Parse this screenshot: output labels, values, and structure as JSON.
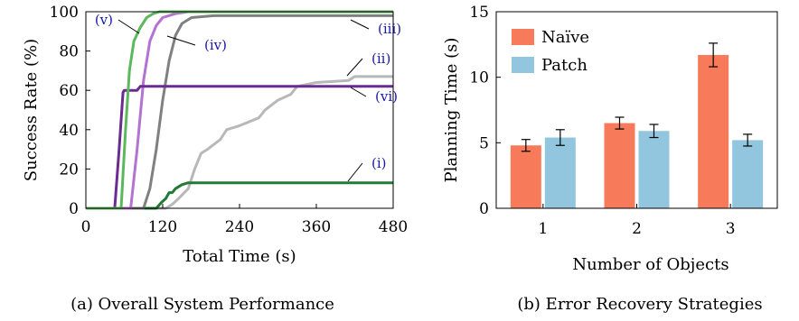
{
  "chart_data": [
    {
      "type": "line",
      "caption": "(a) Overall System Performance",
      "xlabel": "Total Time (s)",
      "ylabel": "Success Rate (%)",
      "xlim": [
        0,
        480
      ],
      "ylim": [
        0,
        100
      ],
      "xticks": [
        "0",
        "120",
        "240",
        "360",
        "480"
      ],
      "yticks": [
        "0",
        "20",
        "40",
        "60",
        "80",
        "100"
      ],
      "grid": false,
      "series": [
        {
          "name": "(i)",
          "color": "#237a35",
          "points": [
            [
              0,
              0
            ],
            [
              110,
              0
            ],
            [
              118,
              3
            ],
            [
              125,
              5
            ],
            [
              130,
              8
            ],
            [
              135,
              8
            ],
            [
              140,
              10
            ],
            [
              150,
              12
            ],
            [
              160,
              13
            ],
            [
              480,
              13
            ]
          ]
        },
        {
          "name": "(ii)",
          "color": "#b8b8b8",
          "points": [
            [
              0,
              0
            ],
            [
              125,
              0
            ],
            [
              135,
              2
            ],
            [
              145,
              5
            ],
            [
              160,
              10
            ],
            [
              170,
              20
            ],
            [
              180,
              28
            ],
            [
              190,
              30
            ],
            [
              210,
              35
            ],
            [
              220,
              40
            ],
            [
              240,
              42
            ],
            [
              270,
              46
            ],
            [
              280,
              50
            ],
            [
              300,
              55
            ],
            [
              320,
              58
            ],
            [
              330,
              62
            ],
            [
              360,
              64
            ],
            [
              410,
              65
            ],
            [
              420,
              67
            ],
            [
              480,
              67
            ]
          ]
        },
        {
          "name": "(iii)",
          "color": "#808080",
          "points": [
            [
              0,
              0
            ],
            [
              90,
              0
            ],
            [
              100,
              10
            ],
            [
              110,
              30
            ],
            [
              120,
              55
            ],
            [
              130,
              75
            ],
            [
              140,
              88
            ],
            [
              150,
              94
            ],
            [
              165,
              97
            ],
            [
              200,
              98
            ],
            [
              480,
              98
            ]
          ]
        },
        {
          "name": "(iv)",
          "color": "#b472d2",
          "points": [
            [
              0,
              0
            ],
            [
              70,
              0
            ],
            [
              80,
              30
            ],
            [
              90,
              65
            ],
            [
              100,
              85
            ],
            [
              110,
              93
            ],
            [
              120,
              97
            ],
            [
              140,
              99
            ],
            [
              160,
              100
            ],
            [
              480,
              100
            ]
          ]
        },
        {
          "name": "(v)",
          "color": "#5cb85c",
          "points": [
            [
              0,
              0
            ],
            [
              55,
              0
            ],
            [
              62,
              40
            ],
            [
              68,
              70
            ],
            [
              75,
              85
            ],
            [
              85,
              92
            ],
            [
              95,
              97
            ],
            [
              105,
              99
            ],
            [
              115,
              100
            ],
            [
              480,
              100
            ]
          ]
        },
        {
          "name": "(vi)",
          "color": "#6a2c91",
          "points": [
            [
              0,
              0
            ],
            [
              45,
              0
            ],
            [
              52,
              30
            ],
            [
              58,
              59
            ],
            [
              60,
              60
            ],
            [
              80,
              60
            ],
            [
              85,
              62
            ],
            [
              480,
              62
            ]
          ]
        }
      ]
    },
    {
      "type": "bar",
      "caption": "(b) Error Recovery Strategies",
      "xlabel": "Number of Objects",
      "ylabel": "Planning Time (s)",
      "ylim": [
        0,
        15
      ],
      "yticks": [
        "0",
        "5",
        "10",
        "15"
      ],
      "categories": [
        "1",
        "2",
        "3"
      ],
      "grid": false,
      "legend": "top-left",
      "series": [
        {
          "name": "Naïve",
          "color": "#f77b5a",
          "values": [
            4.8,
            6.5,
            11.7
          ],
          "errors": [
            0.45,
            0.45,
            0.9
          ]
        },
        {
          "name": "Patch",
          "color": "#92c5de",
          "values": [
            5.4,
            5.9,
            5.2
          ],
          "errors": [
            0.6,
            0.5,
            0.45
          ]
        }
      ]
    }
  ]
}
